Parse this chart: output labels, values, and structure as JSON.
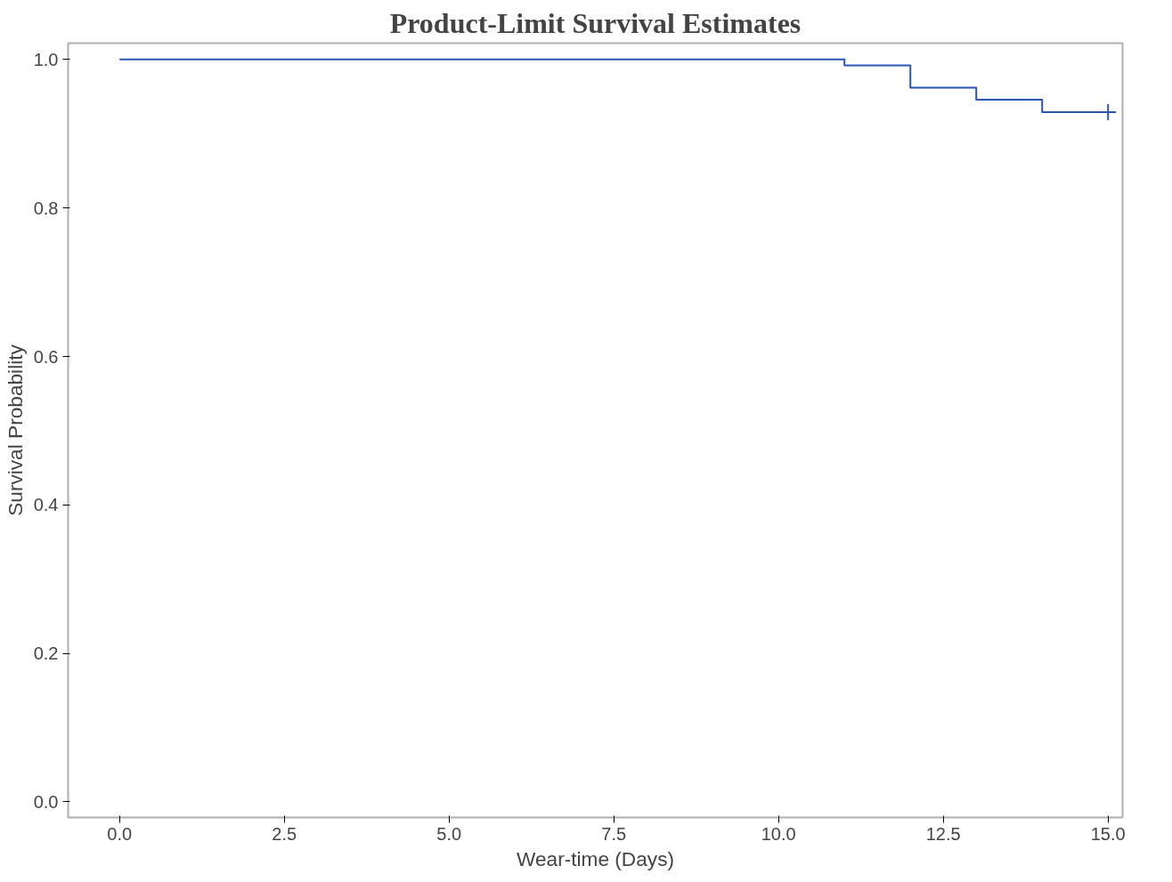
{
  "chart_data": {
    "type": "step",
    "title": "Product-Limit Survival Estimates",
    "xlabel": "Wear-time (Days)",
    "ylabel": "Survival Probability",
    "xlim": [
      -0.78,
      15.22
    ],
    "xticks": [
      {
        "value": 0,
        "label": "0.0"
      },
      {
        "value": 2.5,
        "label": "2.5"
      },
      {
        "value": 5,
        "label": "5.0"
      },
      {
        "value": 7.5,
        "label": "7.5"
      },
      {
        "value": 10,
        "label": "10.0"
      },
      {
        "value": 12.5,
        "label": "12.5"
      },
      {
        "value": 15,
        "label": "15.0"
      }
    ],
    "ylim": [
      -0.021,
      1.022
    ],
    "yticks": [
      {
        "value": 0,
        "label": "0.0"
      },
      {
        "value": 0.2,
        "label": "0.2"
      },
      {
        "value": 0.4,
        "label": "0.4"
      },
      {
        "value": 0.6,
        "label": "0.6"
      },
      {
        "value": 0.8,
        "label": "0.8"
      },
      {
        "value": 1,
        "label": "1.0"
      }
    ],
    "grid": false,
    "series": [
      {
        "color": "#2a55b5",
        "x": [
          0,
          11,
          12,
          13,
          14,
          15
        ],
        "values": [
          1,
          0.992,
          0.962,
          0.946,
          0.929,
          0.929
        ]
      },
      {
        "type": "scatter",
        "marker": "cross",
        "color": "#2a55b5",
        "x": [
          15
        ],
        "values": [
          0.929
        ]
      }
    ]
  }
}
